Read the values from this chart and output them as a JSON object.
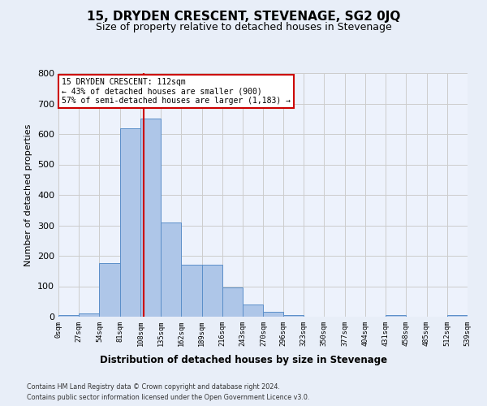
{
  "title": "15, DRYDEN CRESCENT, STEVENAGE, SG2 0JQ",
  "subtitle": "Size of property relative to detached houses in Stevenage",
  "xlabel": "Distribution of detached houses by size in Stevenage",
  "ylabel": "Number of detached properties",
  "annotation_title": "15 DRYDEN CRESCENT: 112sqm",
  "annotation_line2": "← 43% of detached houses are smaller (900)",
  "annotation_line3": "57% of semi-detached houses are larger (1,183) →",
  "footer1": "Contains HM Land Registry data © Crown copyright and database right 2024.",
  "footer2": "Contains public sector information licensed under the Open Government Licence v3.0.",
  "property_size": 112,
  "bar_edges": [
    0,
    27,
    54,
    81,
    108,
    135,
    162,
    189,
    216,
    243,
    270,
    296,
    323,
    350,
    377,
    404,
    431,
    458,
    485,
    512,
    539
  ],
  "bar_heights": [
    5,
    10,
    175,
    620,
    650,
    310,
    170,
    170,
    95,
    40,
    15,
    5,
    0,
    0,
    0,
    0,
    5,
    0,
    0,
    5
  ],
  "bar_color": "#aec6e8",
  "bar_edge_color": "#5b8fc9",
  "vline_color": "#cc0000",
  "vline_x": 112,
  "annotation_box_color": "#cc0000",
  "annotation_fill": "#ffffff",
  "ylim": [
    0,
    800
  ],
  "yticks": [
    0,
    100,
    200,
    300,
    400,
    500,
    600,
    700,
    800
  ],
  "grid_color": "#cccccc",
  "bg_color": "#e8eef8",
  "plot_bg": "#edf2fc"
}
